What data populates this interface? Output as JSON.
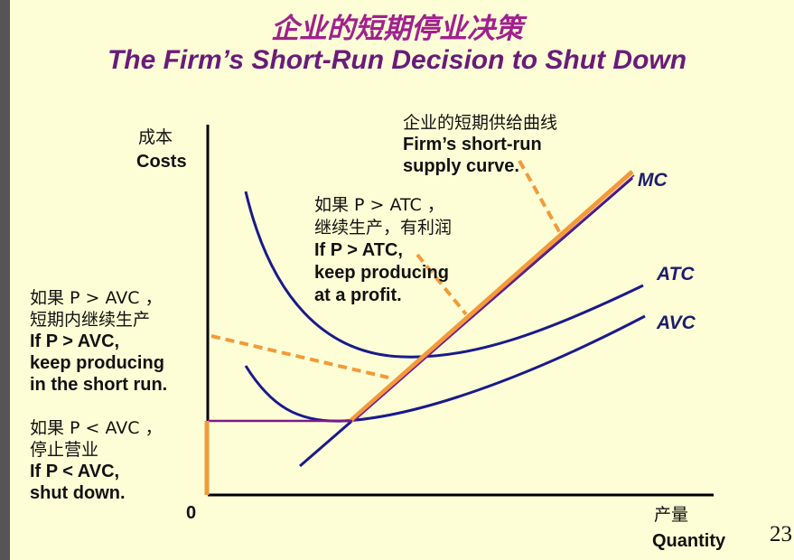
{
  "title_cn": "企业的短期停业决策",
  "title_en": "The Firm’s Short-Run Decision to Shut Down",
  "axis": {
    "y_label_cn": "成本",
    "y_label_en": "Costs",
    "x_label_cn": "产量",
    "x_label_en": "Quantity",
    "origin": "0"
  },
  "curves": {
    "mc": "MC",
    "atc": "ATC",
    "avc": "AVC"
  },
  "annotations": {
    "supply": {
      "cn": "企业的短期供给曲线",
      "en1": "Firm’s short-run",
      "en2": "supply curve."
    },
    "profit": {
      "cn1": "如果 P > ATC ，",
      "cn2": "继续生产，有利润",
      "en1": "If P > ATC,",
      "en2": "keep producing",
      "en3": "at a profit."
    },
    "shortrun": {
      "cn1": "如果 P > AVC ，",
      "cn2": "短期内继续生产",
      "en1": "If P > AVC,",
      "en2": "keep producing",
      "en3": "in the short run."
    },
    "shutdown": {
      "cn1": "如果 P < AVC ，",
      "cn2": "停止营业",
      "en1": "If P < AVC,",
      "en2": "shut down."
    }
  },
  "colors": {
    "title_cn": "#a0218e",
    "title_en": "#6a1b7a",
    "curves": "#1a1a8c",
    "mc": "#1a1a8c",
    "supply": "#f39a3a",
    "shutdown_line": "#7a1a8c",
    "background": "#fefed6"
  },
  "page_number": "23"
}
